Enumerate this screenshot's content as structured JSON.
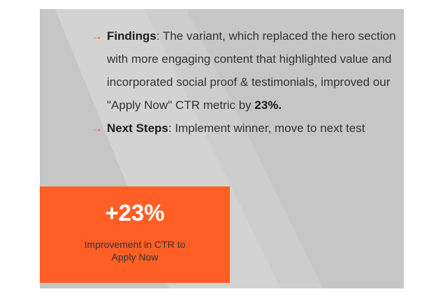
{
  "findings": {
    "label": "Findings",
    "text": ": The variant, which replaced the hero section with more engaging content that highlighted value and incorporated social proof & testimonials, improved our \"Apply Now\" CTR metric by ",
    "highlight": "23%."
  },
  "next_steps": {
    "label": "Next Steps",
    "text": ": Implement winner, move to next test"
  },
  "stat": {
    "value": "+23%",
    "caption": "Improvement in CTR to Apply Now"
  },
  "icons": {
    "bullet": "arrow-right-icon"
  },
  "colors": {
    "accent": "#ff5f24",
    "background": "#c6c6c6"
  }
}
